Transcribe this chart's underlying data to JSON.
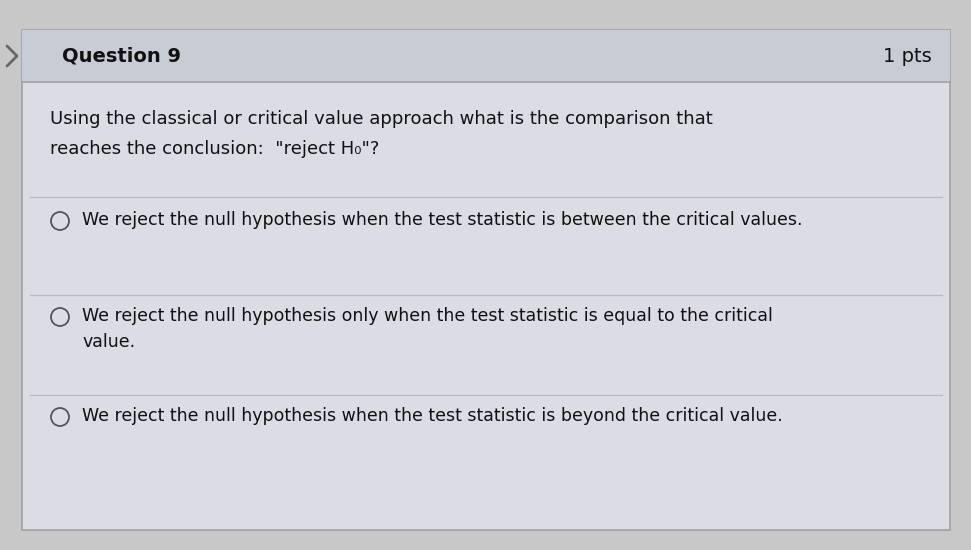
{
  "bg_color": "#c8c8c8",
  "header_bg": "#c8ccd4",
  "body_bg": "#dcdce4",
  "outer_border": "#a0a0a8",
  "divider_color": "#b8b8c0",
  "question_label": "Question 9",
  "pts_label": "1 pts",
  "question_text_line1": "Using the classical or critical value approach what is the comparison that",
  "question_text_line2": "reaches the conclusion:  \"reject H₀\"?",
  "options": [
    "We reject the null hypothesis when the test statistic is between the critical values.",
    "We reject the null hypothesis only when the test statistic is equal to the critical\nvalue.",
    "We reject the null hypothesis when the test statistic is beyond the critical value."
  ],
  "header_font_size": 14,
  "body_font_size": 13,
  "option_font_size": 12.5,
  "fig_w": 9.71,
  "fig_h": 5.5,
  "dpi": 100
}
